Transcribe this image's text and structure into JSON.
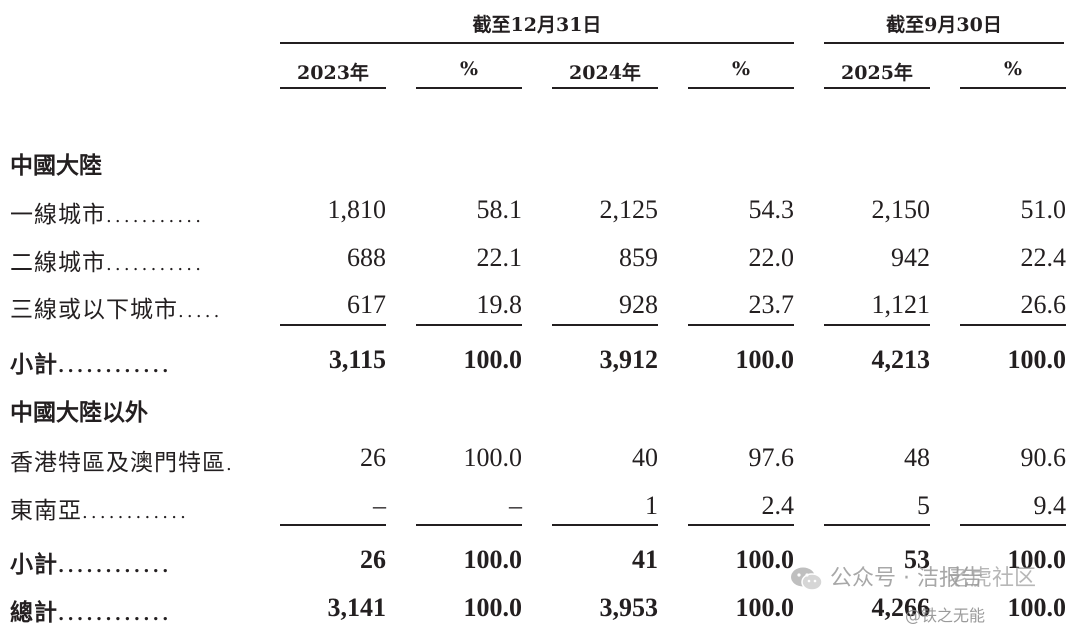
{
  "header": {
    "group1": "截至12月31日",
    "group2": "截至9月30日",
    "columns": [
      "2023年",
      "%",
      "2024年",
      "%",
      "2025年",
      "%"
    ]
  },
  "sections": [
    {
      "title": "中國大陸",
      "rows": [
        {
          "label": "一線城市",
          "dots": "...........",
          "values": [
            "1,810",
            "58.1",
            "2,125",
            "54.3",
            "2,150",
            "51.0"
          ]
        },
        {
          "label": "二線城市",
          "dots": "...........",
          "values": [
            "688",
            "22.1",
            "859",
            "22.0",
            "942",
            "22.4"
          ]
        },
        {
          "label": "三線或以下城市",
          "dots": ".....",
          "values": [
            "617",
            "19.8",
            "928",
            "23.7",
            "1,121",
            "26.6"
          ]
        }
      ],
      "subtotal": {
        "label": "小計",
        "dots": "............",
        "values": [
          "3,115",
          "100.0",
          "3,912",
          "100.0",
          "4,213",
          "100.0"
        ]
      }
    },
    {
      "title": "中國大陸以外",
      "rows": [
        {
          "label": "香港特區及澳門特區",
          "dots": ".",
          "values": [
            "26",
            "100.0",
            "40",
            "97.6",
            "48",
            "90.6"
          ]
        },
        {
          "label": "東南亞",
          "dots": "............",
          "values": [
            "–",
            "–",
            "1",
            "2.4",
            "5",
            "9.4"
          ]
        }
      ],
      "subtotal": {
        "label": "小計",
        "dots": "............",
        "values": [
          "26",
          "100.0",
          "41",
          "100.0",
          "53",
          "100.0"
        ]
      }
    }
  ],
  "total": {
    "label": "總計",
    "dots": "............",
    "values": [
      "3,141",
      "100.0",
      "3,953",
      "100.0",
      "4,266",
      "100.0"
    ]
  },
  "watermark": {
    "main": "公众号 · 洁报告",
    "sub": "@铁之无能",
    "overlay": "老虎社区"
  }
}
